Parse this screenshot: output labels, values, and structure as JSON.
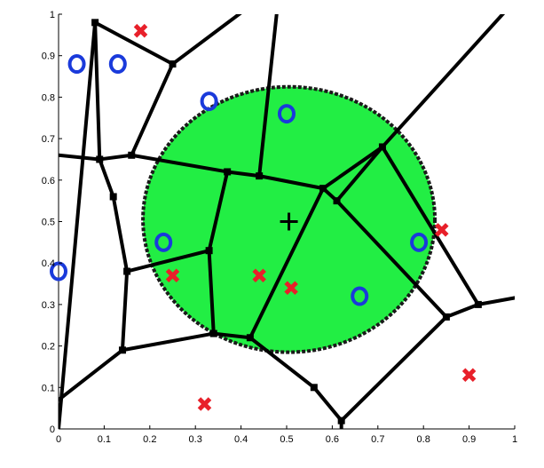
{
  "chart_data": {
    "type": "scatter",
    "xlim": [
      0,
      1
    ],
    "ylim": [
      0,
      1
    ],
    "grid": false,
    "legend": "none",
    "x_ticks": [
      "0",
      "0.1",
      "0.2",
      "0.3",
      "0.4",
      "0.5",
      "0.6",
      "0.7",
      "0.8",
      "0.9",
      "1"
    ],
    "y_ticks": [
      "0",
      "0.1",
      "0.2",
      "0.3",
      "0.4",
      "0.5",
      "0.6",
      "0.7",
      "0.8",
      "0.9",
      "1"
    ],
    "circle": {
      "center": [
        0.505,
        0.505
      ],
      "radius": 0.32,
      "fill": "#22ee44"
    },
    "center_marker": {
      "x": 0.505,
      "y": 0.5,
      "symbol": "+"
    },
    "series": [
      {
        "marker": "o",
        "color": "#1a3adb",
        "points": [
          [
            0.04,
            0.88
          ],
          [
            0.13,
            0.88
          ],
          [
            0.33,
            0.79
          ],
          [
            0.5,
            0.76
          ],
          [
            0.23,
            0.45
          ],
          [
            0.0,
            0.38
          ],
          [
            0.66,
            0.32
          ],
          [
            0.79,
            0.45
          ]
        ]
      },
      {
        "marker": "x",
        "color": "#e8202a",
        "points": [
          [
            0.18,
            0.96
          ],
          [
            0.25,
            0.37
          ],
          [
            0.44,
            0.37
          ],
          [
            0.51,
            0.34
          ],
          [
            0.84,
            0.48
          ],
          [
            0.32,
            0.06
          ],
          [
            0.9,
            0.13
          ]
        ]
      }
    ],
    "voronoi": {
      "vertices": [
        [
          0.08,
          0.98
        ],
        [
          0.25,
          0.88
        ],
        [
          0.09,
          0.65
        ],
        [
          0.16,
          0.66
        ],
        [
          0.12,
          0.56
        ],
        [
          0.37,
          0.62
        ],
        [
          0.44,
          0.61
        ],
        [
          0.58,
          0.58
        ],
        [
          0.61,
          0.55
        ],
        [
          0.71,
          0.68
        ],
        [
          0.33,
          0.43
        ],
        [
          0.15,
          0.38
        ],
        [
          0.14,
          0.19
        ],
        [
          0.34,
          0.23
        ],
        [
          0.42,
          0.22
        ],
        [
          0.56,
          0.1
        ],
        [
          0.62,
          0.02
        ],
        [
          0.85,
          0.27
        ],
        [
          0.92,
          0.3
        ]
      ],
      "edges": [
        [
          [
            0,
            0
          ],
          [
            0.08,
            0.98
          ]
        ],
        [
          [
            0.08,
            0.98
          ],
          [
            0.25,
            0.88
          ]
        ],
        [
          [
            0.25,
            0.88
          ],
          [
            0.42,
            1.02
          ]
        ],
        [
          [
            0.08,
            0.98
          ],
          [
            0.09,
            0.65
          ]
        ],
        [
          [
            0.25,
            0.88
          ],
          [
            0.16,
            0.66
          ]
        ],
        [
          [
            0.09,
            0.65
          ],
          [
            0.16,
            0.66
          ]
        ],
        [
          [
            0.09,
            0.65
          ],
          [
            0.0,
            0.66
          ]
        ],
        [
          [
            0.09,
            0.65
          ],
          [
            0.12,
            0.56
          ]
        ],
        [
          [
            0.16,
            0.66
          ],
          [
            0.37,
            0.62
          ]
        ],
        [
          [
            0.37,
            0.62
          ],
          [
            0.44,
            0.61
          ]
        ],
        [
          [
            0.44,
            0.61
          ],
          [
            0.58,
            0.58
          ]
        ],
        [
          [
            0.44,
            0.61
          ],
          [
            0.48,
            1.02
          ]
        ],
        [
          [
            0.58,
            0.58
          ],
          [
            0.61,
            0.55
          ]
        ],
        [
          [
            0.58,
            0.58
          ],
          [
            0.71,
            0.68
          ]
        ],
        [
          [
            0.71,
            0.68
          ],
          [
            0.99,
            1.02
          ]
        ],
        [
          [
            0.61,
            0.55
          ],
          [
            0.71,
            0.68
          ]
        ],
        [
          [
            0.37,
            0.62
          ],
          [
            0.33,
            0.43
          ]
        ],
        [
          [
            0.12,
            0.56
          ],
          [
            0.15,
            0.38
          ]
        ],
        [
          [
            0.15,
            0.38
          ],
          [
            0.33,
            0.43
          ]
        ],
        [
          [
            0.15,
            0.38
          ],
          [
            0.14,
            0.19
          ]
        ],
        [
          [
            0.14,
            0.19
          ],
          [
            0.34,
            0.23
          ]
        ],
        [
          [
            0.14,
            0.19
          ],
          [
            0.0,
            0.07
          ]
        ],
        [
          [
            0.33,
            0.43
          ],
          [
            0.34,
            0.23
          ]
        ],
        [
          [
            0.34,
            0.23
          ],
          [
            0.42,
            0.22
          ]
        ],
        [
          [
            0.58,
            0.58
          ],
          [
            0.42,
            0.22
          ]
        ],
        [
          [
            0.61,
            0.55
          ],
          [
            0.85,
            0.27
          ]
        ],
        [
          [
            0.71,
            0.68
          ],
          [
            0.92,
            0.3
          ]
        ],
        [
          [
            0.85,
            0.27
          ],
          [
            0.92,
            0.3
          ]
        ],
        [
          [
            0.92,
            0.3
          ],
          [
            1.02,
            0.32
          ]
        ],
        [
          [
            0.42,
            0.22
          ],
          [
            0.56,
            0.1
          ]
        ],
        [
          [
            0.56,
            0.1
          ],
          [
            0.62,
            0.02
          ]
        ],
        [
          [
            0.62,
            0.02
          ],
          [
            0.85,
            0.27
          ]
        ],
        [
          [
            0.62,
            0.02
          ],
          [
            0.62,
            -0.02
          ]
        ]
      ]
    }
  }
}
